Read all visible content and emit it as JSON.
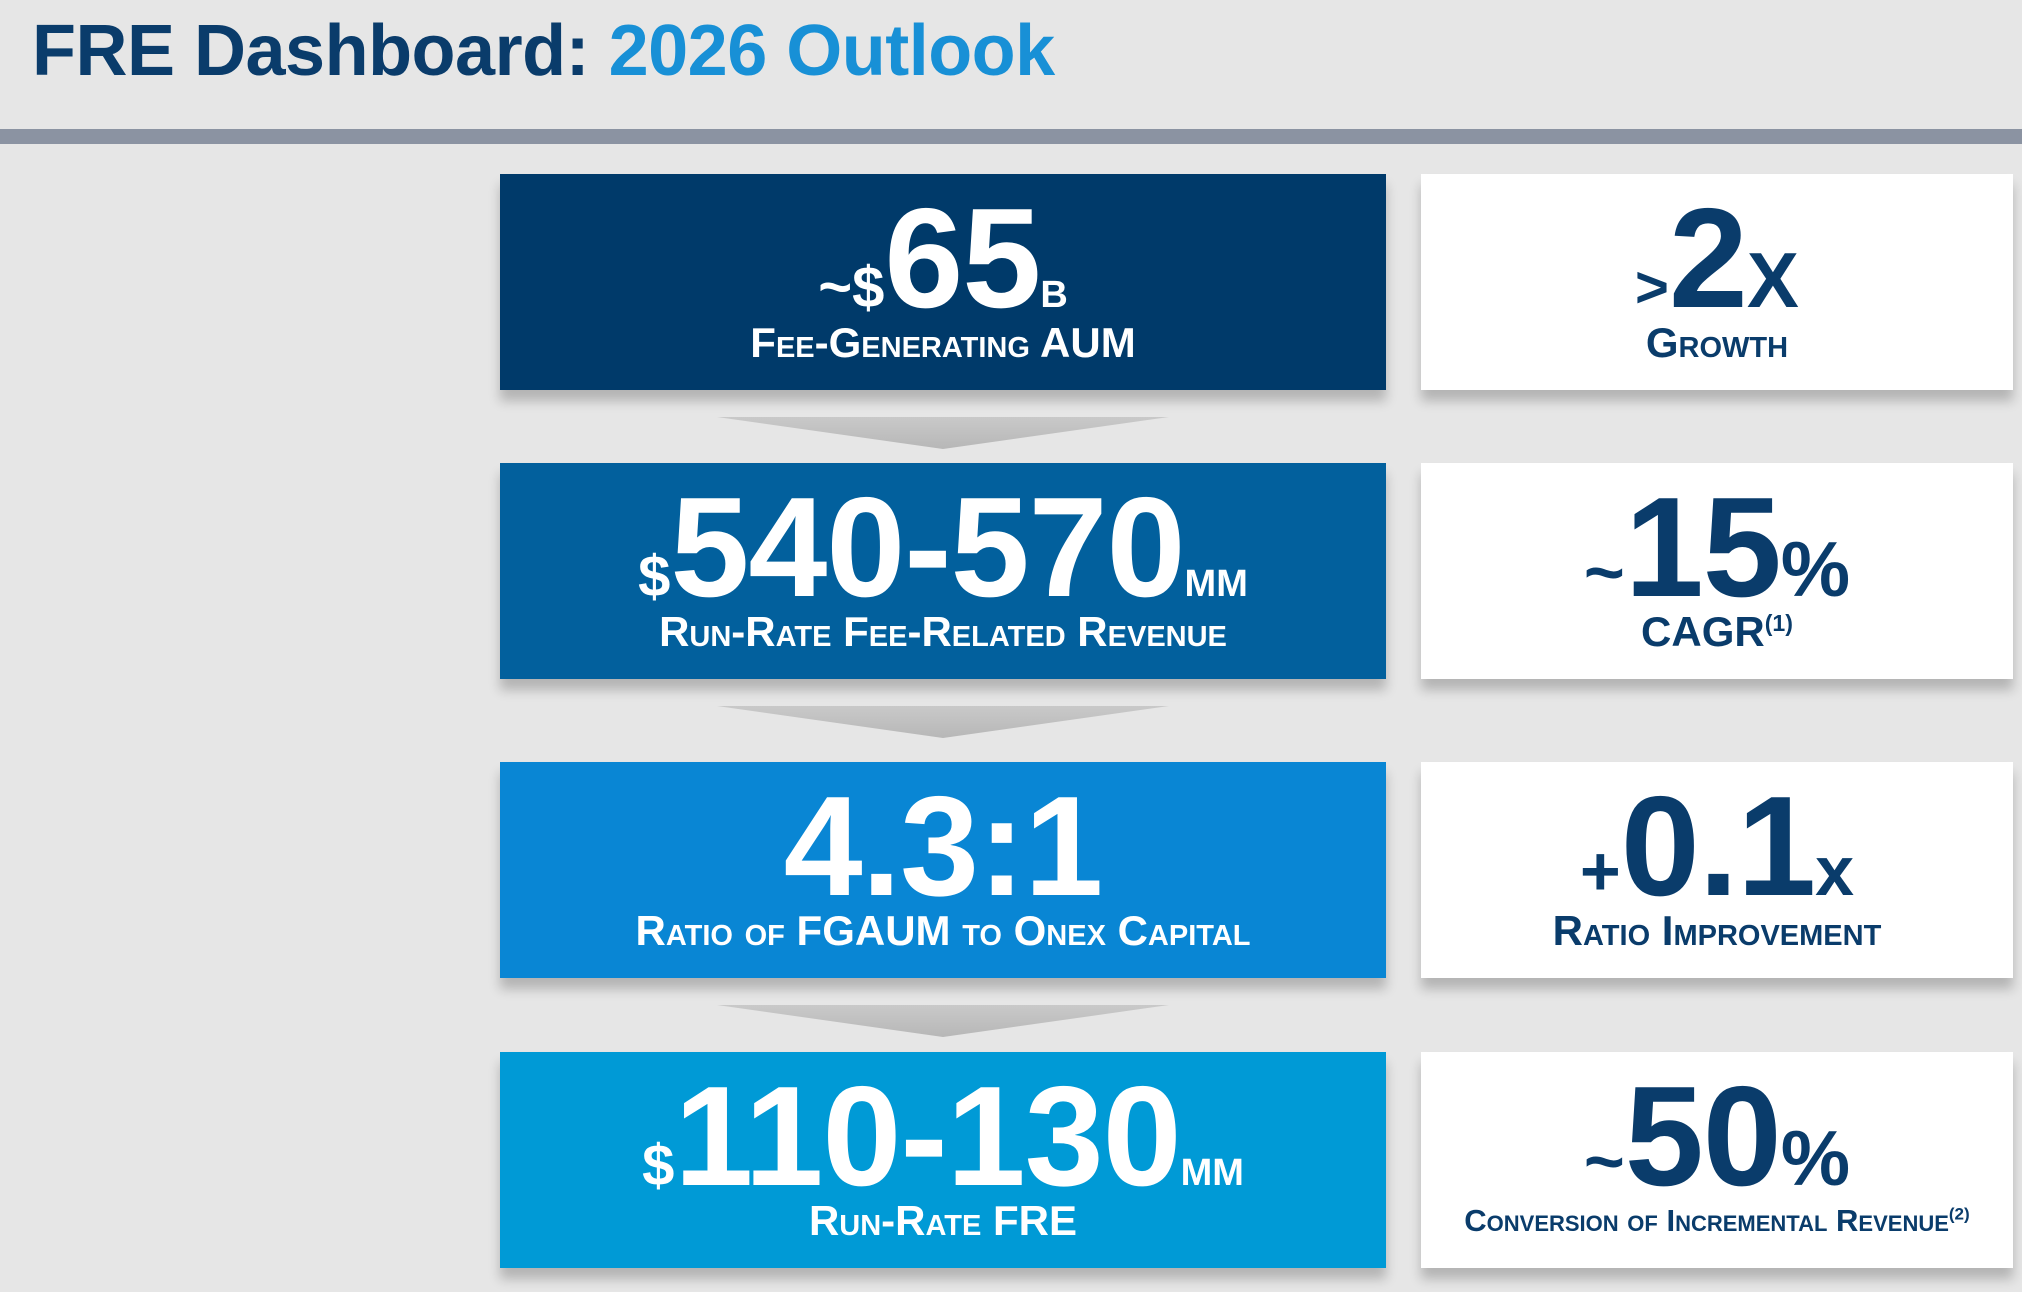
{
  "header": {
    "title_part1": "FRE Dashboard:",
    "title_part2": "2026 Outlook"
  },
  "rows": [
    {
      "main": {
        "prefix": "~$",
        "value": "65",
        "suffix": "B",
        "label": "Fee-Generating AUM",
        "color": "#003a6a"
      },
      "side": {
        "prefix": ">",
        "value": "2",
        "suffix": "X",
        "label": "Growth",
        "footnote": ""
      }
    },
    {
      "main": {
        "prefix": "$",
        "value": "540-570",
        "suffix": "MM",
        "label": "Run-Rate Fee-Related Revenue",
        "color": "#02609d"
      },
      "side": {
        "prefix": "~",
        "value": "15",
        "suffix": "%",
        "label": "CAGR",
        "footnote": "(1)"
      }
    },
    {
      "main": {
        "prefix": "",
        "value": "4.3:1",
        "suffix": "",
        "label": "Ratio of FGAUM to Onex Capital",
        "color": "#0986d4"
      },
      "side": {
        "prefix": "+",
        "value": "0.1",
        "suffix": "x",
        "label": "Ratio Improvement",
        "footnote": ""
      }
    },
    {
      "main": {
        "prefix": "$",
        "value": "110-130",
        "suffix": "MM",
        "label": "Run-Rate FRE",
        "color": "#009ad6"
      },
      "side": {
        "prefix": "~",
        "value": "50",
        "suffix": "%",
        "label": "Conversion of Incremental Revenue",
        "footnote": "(2)"
      }
    }
  ],
  "colors": {
    "navy": "#0a3c6b",
    "accent": "#1890d6",
    "background": "#e6e6e6"
  }
}
